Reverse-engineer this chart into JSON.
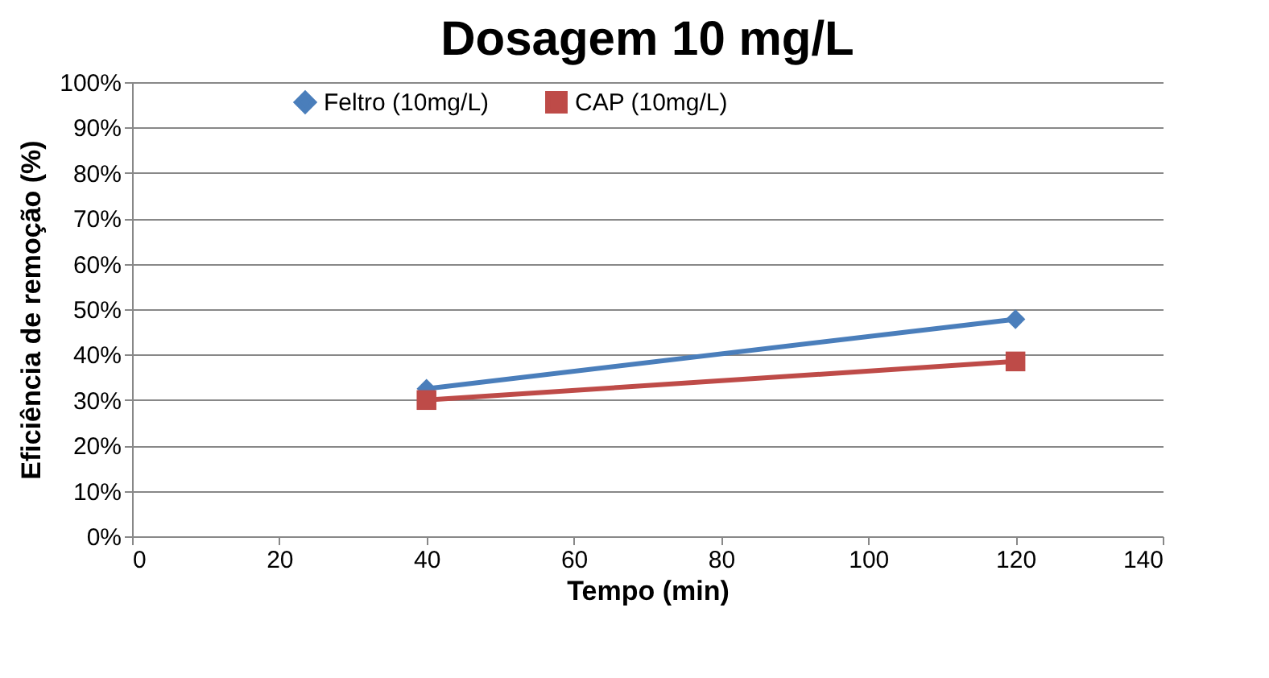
{
  "chart_data": {
    "type": "line",
    "title": "Dosagem 10 mg/L",
    "xlabel": "Tempo (min)",
    "ylabel": "Eficiência de remoção (%)",
    "x": [
      40,
      120
    ],
    "series": [
      {
        "name": "Feltro (10mg/L)",
        "color": "#4a7ebb",
        "values": [
          32.5,
          47.8
        ],
        "marker": "diamond"
      },
      {
        "name": "CAP (10mg/L)",
        "color": "#be4b48",
        "values": [
          30,
          38.5
        ],
        "marker": "square"
      }
    ],
    "xlim": [
      0,
      140
    ],
    "xticks": [
      0,
      20,
      40,
      60,
      80,
      100,
      120,
      140
    ],
    "ylim": [
      0,
      100
    ],
    "yticks": [
      {
        "value": 0,
        "label": "0%"
      },
      {
        "value": 10,
        "label": "10%"
      },
      {
        "value": 20,
        "label": "20%"
      },
      {
        "value": 30,
        "label": "30%"
      },
      {
        "value": 40,
        "label": "40%"
      },
      {
        "value": 50,
        "label": "50%"
      },
      {
        "value": 60,
        "label": "60%"
      },
      {
        "value": 70,
        "label": "70%"
      },
      {
        "value": 80,
        "label": "80%"
      },
      {
        "value": 90,
        "label": "90%"
      },
      {
        "value": 100,
        "label": "100%"
      }
    ],
    "grid": "y",
    "legend": "top",
    "line_style": "solid"
  }
}
